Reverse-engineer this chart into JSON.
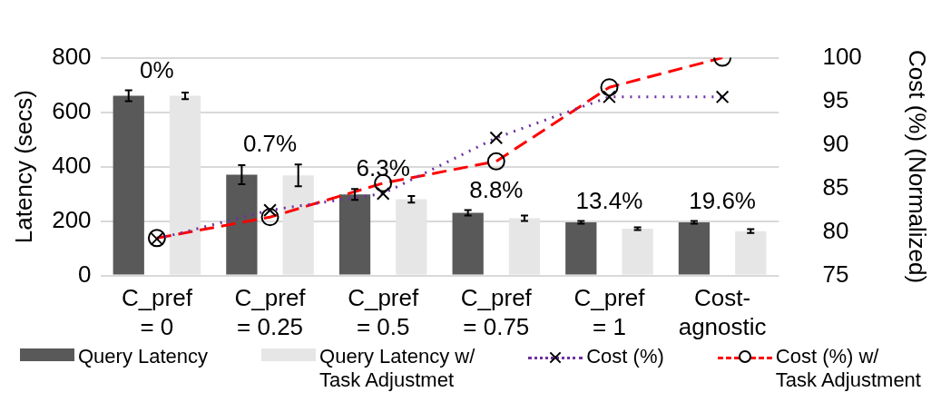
{
  "chart_data": {
    "type": "bar",
    "ylabel": "Latency (secs)",
    "y2label": "Cost (%) (Normalized)",
    "categories": [
      "C_pref\n= 0",
      "C_pref\n= 0.25",
      "C_pref\n= 0.5",
      "C_pref\n= 0.75",
      "C_pref\n= 1",
      "Cost-\nagnostic"
    ],
    "series": [
      {
        "name": "Query Latency",
        "color": "#595959",
        "values": [
          660,
          370,
          298,
          230,
          195,
          195
        ],
        "errors": [
          20,
          35,
          20,
          10,
          5,
          5
        ]
      },
      {
        "name": "Query Latency w/\nTask Adjustmet",
        "color": "#e6e6e6",
        "values": [
          660,
          368,
          280,
          210,
          172,
          163
        ],
        "errors": [
          12,
          40,
          12,
          10,
          5,
          7
        ]
      },
      {
        "name": "Cost (%)",
        "type": "line",
        "axis": "y2",
        "color": "#7030a0",
        "marker": "cross",
        "line_style": "dotted",
        "values": [
          79.2,
          82.5,
          84.4,
          90.8,
          95.5,
          95.5
        ]
      },
      {
        "name": "Cost (%) w/\nTask Adjustment",
        "type": "line",
        "axis": "y2",
        "color": "#ff0000",
        "marker": "circle",
        "line_style": "dashed",
        "values": [
          79.3,
          81.7,
          85.6,
          88.1,
          96.6,
          100
        ]
      }
    ],
    "annotations": [
      "0%",
      "0.7%",
      "6.3%",
      "8.8%",
      "13.4%",
      "19.6%"
    ],
    "ylim": [
      0,
      800
    ],
    "yticks": [
      0,
      200,
      400,
      600,
      800
    ],
    "y2lim": [
      75,
      100
    ],
    "y2ticks": [
      75,
      80,
      85,
      90,
      95,
      100
    ],
    "grid": "y",
    "legend": "bottom"
  }
}
